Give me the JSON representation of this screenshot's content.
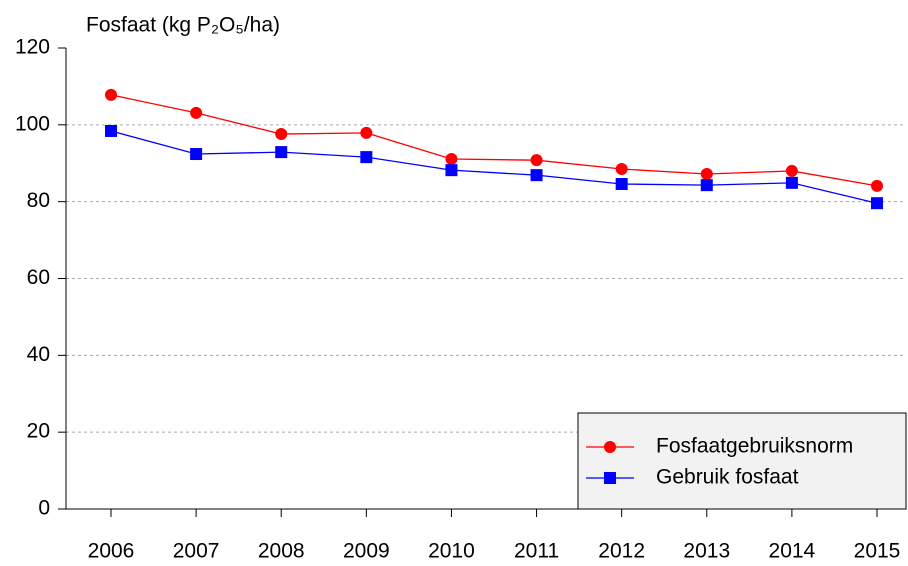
{
  "chart_data": {
    "type": "line",
    "title": "Fosfaat (kg P₂O₅/ha)",
    "categories": [
      "2006",
      "2007",
      "2008",
      "2009",
      "2010",
      "2011",
      "2012",
      "2013",
      "2014",
      "2015"
    ],
    "series": [
      {
        "name": "Fosfaatgebruiksnorm",
        "color": "#ff0000",
        "marker": "circle",
        "values": [
          107.8,
          103.1,
          97.6,
          97.9,
          91.1,
          90.8,
          88.5,
          87.2,
          88.0,
          84.1
        ]
      },
      {
        "name": "Gebruik fosfaat",
        "color": "#0000ff",
        "marker": "square",
        "values": [
          98.4,
          92.4,
          92.9,
          91.6,
          88.2,
          86.9,
          84.6,
          84.3,
          84.9,
          79.6
        ]
      }
    ],
    "ylim": [
      0,
      120
    ],
    "yticks": [
      0,
      20,
      40,
      60,
      80,
      100,
      120
    ],
    "grid": true,
    "legend": "lower right"
  }
}
